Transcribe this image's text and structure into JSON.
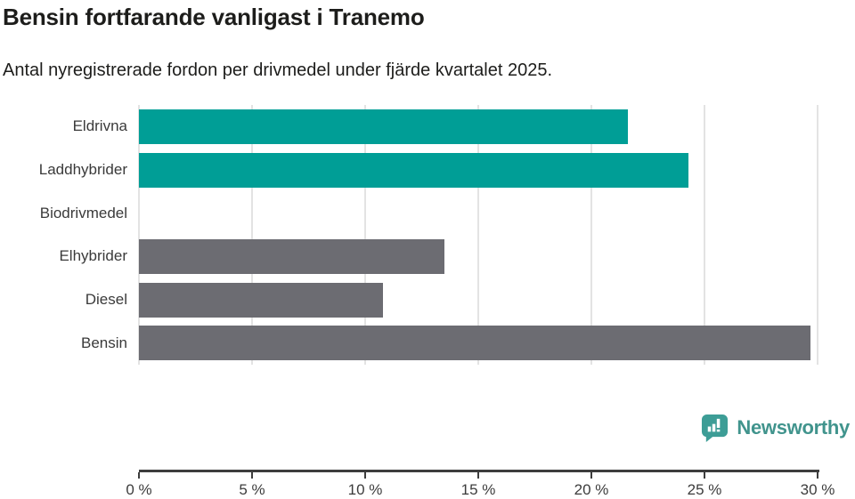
{
  "header": {
    "title": "Bensin fortfarande vanligast i Tranemo",
    "subtitle": "Antal nyregistrerade fordon per drivmedel under fjärde kvartalet 2025."
  },
  "chart_data": {
    "type": "bar",
    "orientation": "horizontal",
    "title": "Bensin fortfarande vanligast i Tranemo",
    "subtitle": "Antal nyregistrerade fordon per drivmedel under fjärde kvartalet 2025.",
    "categories": [
      "Eldrivna",
      "Laddhybrider",
      "Biodrivmedel",
      "Elhybrider",
      "Diesel",
      "Bensin"
    ],
    "values": [
      21.6,
      24.3,
      0,
      13.5,
      10.8,
      29.7
    ],
    "unit": "%",
    "bar_colors": [
      "#009E96",
      "#009E96",
      "#009E96",
      "#6C6C72",
      "#6C6C72",
      "#6C6C72"
    ],
    "xlim": [
      0,
      30
    ],
    "x_ticks": [
      0,
      5,
      10,
      15,
      20,
      25,
      30
    ],
    "x_tick_labels": [
      "0 %",
      "5 %",
      "10 %",
      "15 %",
      "20 %",
      "25 %",
      "30 %"
    ],
    "xlabel": "",
    "ylabel": "",
    "grid": true,
    "legend": false
  },
  "footer": {
    "brand": "Newsworthy"
  },
  "colors": {
    "teal": "#009E96",
    "gray": "#6C6C72",
    "gridline": "#E3E3E3",
    "axis": "#3D3D3D",
    "text_dark": "#1D1D1B",
    "label": "#3A3A3A",
    "brand_teal": "#41948D",
    "brand_icon": "#3D9D96"
  }
}
